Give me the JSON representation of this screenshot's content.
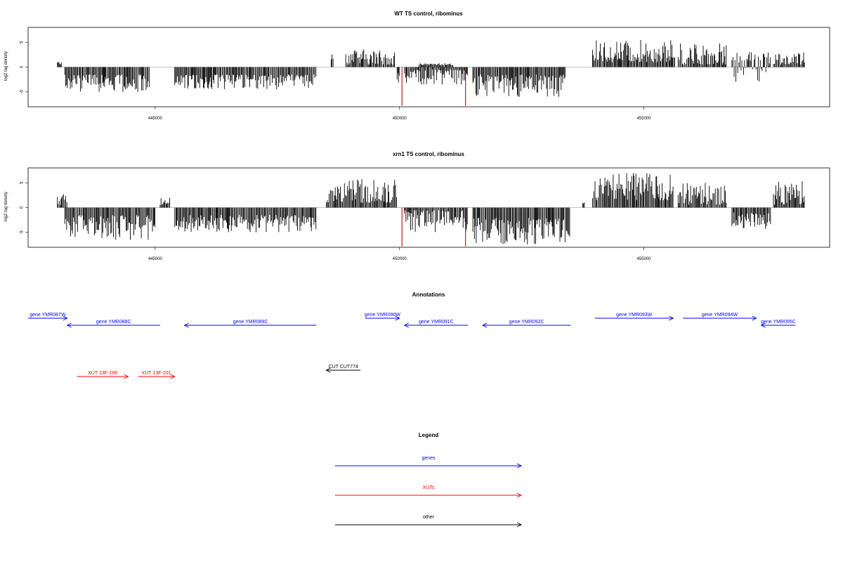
{
  "chart_data": [
    {
      "type": "bar",
      "title": "WT TS control, ribominus",
      "ylabel": "log2 tag density",
      "xlim": [
        442400,
        458800
      ],
      "ylim": [
        -8,
        8
      ],
      "xticks": [
        445000,
        450000,
        455000
      ],
      "xtick_labels": [
        "445000",
        "450000",
        "455000"
      ],
      "yticks": [
        -5,
        0,
        5
      ],
      "ytick_labels": [
        "-5",
        "0",
        "5"
      ],
      "baseline": 0,
      "bar_color": "#000000",
      "segments": [
        {
          "from": 443000,
          "to": 443100,
          "min": 0.5,
          "max": 1.2
        },
        {
          "from": 443150,
          "to": 444900,
          "min": -5.0,
          "max": -1.5
        },
        {
          "from": 445400,
          "to": 448300,
          "min": -4.5,
          "max": -1.5
        },
        {
          "from": 448600,
          "to": 448650,
          "min": 1.5,
          "max": 3.0
        },
        {
          "from": 448900,
          "to": 449900,
          "min": 0.5,
          "max": 3.6
        },
        {
          "from": 449950,
          "to": 450000,
          "min": -4.0,
          "max": -1.0
        },
        {
          "from": 450100,
          "to": 451400,
          "min": -3.5,
          "max": -0.5
        },
        {
          "from": 450400,
          "to": 451100,
          "min": 0.4,
          "max": 0.8
        },
        {
          "from": 451500,
          "to": 453400,
          "min": -6.0,
          "max": -1.5
        },
        {
          "from": 453950,
          "to": 455650,
          "min": 1.0,
          "max": 5.5
        },
        {
          "from": 455700,
          "to": 456700,
          "min": 0.5,
          "max": 5.0
        },
        {
          "from": 456800,
          "to": 457600,
          "min": -3.0,
          "max": 3.0
        },
        {
          "from": 457650,
          "to": 458300,
          "min": 0.5,
          "max": 3.0
        }
      ],
      "highlights": [
        {
          "x": 450050,
          "value": -7.8,
          "color": "#cc0000"
        },
        {
          "x": 451350,
          "value": -7.8,
          "color": "#cc0000"
        }
      ]
    },
    {
      "type": "bar",
      "title": "xrn1 TS control, ribominus",
      "ylabel": "log2 tag density",
      "xlim": [
        442400,
        458800
      ],
      "ylim": [
        -8,
        8
      ],
      "xticks": [
        445000,
        450000,
        455000
      ],
      "xtick_labels": [
        "445000",
        "450000",
        "455000"
      ],
      "yticks": [
        -5,
        0,
        5
      ],
      "ytick_labels": [
        "-5",
        "0",
        "5"
      ],
      "baseline": 0,
      "bar_color": "#000000",
      "segments": [
        {
          "from": 443000,
          "to": 443200,
          "min": 0.5,
          "max": 3.0
        },
        {
          "from": 443150,
          "to": 445000,
          "min": -6.5,
          "max": -1.5
        },
        {
          "from": 445100,
          "to": 445300,
          "min": 0.5,
          "max": 2.0
        },
        {
          "from": 445400,
          "to": 448300,
          "min": -5.0,
          "max": -1.5
        },
        {
          "from": 448500,
          "to": 449950,
          "min": 1.0,
          "max": 5.8
        },
        {
          "from": 450100,
          "to": 451400,
          "min": -5.0,
          "max": -0.5
        },
        {
          "from": 451500,
          "to": 453500,
          "min": -7.5,
          "max": -2.0
        },
        {
          "from": 453750,
          "to": 453800,
          "min": 0.5,
          "max": 2.0
        },
        {
          "from": 453950,
          "to": 455600,
          "min": 1.5,
          "max": 7.0
        },
        {
          "from": 455700,
          "to": 456700,
          "min": 0.5,
          "max": 5.0
        },
        {
          "from": 456800,
          "to": 457600,
          "min": -4.5,
          "max": -1.0
        },
        {
          "from": 457650,
          "to": 458300,
          "min": 0.5,
          "max": 5.5
        }
      ],
      "highlights": [
        {
          "x": 450050,
          "value": -7.8,
          "color": "#cc0000"
        },
        {
          "x": 451350,
          "value": -7.8,
          "color": "#cc0000"
        }
      ]
    }
  ],
  "annotations": {
    "title": "Annotations",
    "xlim": [
      442400,
      458800
    ],
    "features": [
      {
        "label": "gene YMR087W",
        "start": 442400,
        "end": 443200,
        "strand": "+",
        "row": 0,
        "kind": "genes"
      },
      {
        "label": "gene YMR088C",
        "start": 443200,
        "end": 445100,
        "strand": "-",
        "row": 1,
        "kind": "genes"
      },
      {
        "label": "gene YMR089C",
        "start": 445600,
        "end": 448300,
        "strand": "-",
        "row": 1,
        "kind": "genes"
      },
      {
        "label": "gene YMR090W",
        "start": 449300,
        "end": 450000,
        "strand": "+",
        "row": 0,
        "kind": "genes"
      },
      {
        "label": "gene YMR091C",
        "start": 450100,
        "end": 451400,
        "strand": "-",
        "row": 1,
        "kind": "genes"
      },
      {
        "label": "gene YMR092C",
        "start": 451700,
        "end": 453500,
        "strand": "-",
        "row": 1,
        "kind": "genes"
      },
      {
        "label": "gene YMR093W",
        "start": 454000,
        "end": 455600,
        "strand": "+",
        "row": 0,
        "kind": "genes"
      },
      {
        "label": "gene YMR094W",
        "start": 455800,
        "end": 457300,
        "strand": "+",
        "row": 0,
        "kind": "genes"
      },
      {
        "label": "gene YMR095C",
        "start": 457400,
        "end": 458100,
        "strand": "-",
        "row": 1,
        "kind": "genes"
      },
      {
        "label": "CUT CUT774",
        "start": 448500,
        "end": 449200,
        "strand": "-",
        "row": 6,
        "kind": "other"
      },
      {
        "label": "XUT 13F-199",
        "start": 443400,
        "end": 444450,
        "strand": "+",
        "row": 7,
        "kind": "XUTs"
      },
      {
        "label": "XUT 13F-201",
        "start": 444650,
        "end": 445400,
        "strand": "+",
        "row": 7,
        "kind": "XUTs"
      }
    ]
  },
  "legend": {
    "title": "Legend",
    "items": [
      {
        "label": "genes",
        "color": "#0000ff"
      },
      {
        "label": "XUTs",
        "color": "#ff0000"
      },
      {
        "label": "other",
        "color": "#000000"
      }
    ]
  },
  "colors": {
    "genes": "#0000ff",
    "XUTs": "#ff0000",
    "other": "#000000",
    "highlight": "#cc0000",
    "axis": "#000000",
    "baseline": "#888888"
  }
}
